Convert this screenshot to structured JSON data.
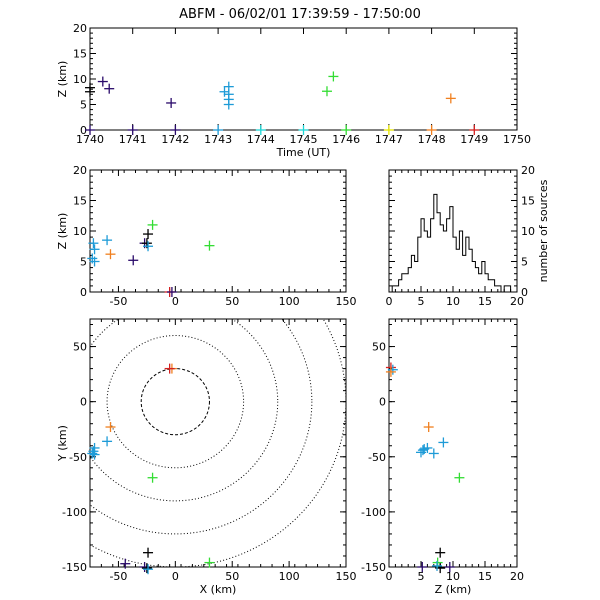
{
  "title": "ABFM - 06/02/01 17:39:59 - 17:50:00",
  "colors": {
    "black": "#000000",
    "indigo": "#2a0a6a",
    "blue": "#1e9bd7",
    "cyan": "#1fd6d6",
    "green": "#33dd33",
    "yellow": "#e6e600",
    "orange": "#f08020",
    "red": "#d42020"
  },
  "chart_data": [
    {
      "panel": "time-height",
      "type": "scatter",
      "xlabel": "Time (UT)",
      "ylabel": "Z (km)",
      "xlim": [
        1740,
        1750
      ],
      "ylim": [
        0,
        20
      ],
      "xticks": [
        1740,
        1741,
        1742,
        1743,
        1744,
        1745,
        1746,
        1747,
        1748,
        1749,
        1750
      ],
      "yticks": [
        0,
        5,
        10,
        15,
        20
      ],
      "points": [
        {
          "x": 1740.0,
          "y": 7.5,
          "c": "black"
        },
        {
          "x": 1740.0,
          "y": 8.3,
          "c": "black"
        },
        {
          "x": 1740.3,
          "y": 9.5,
          "c": "indigo"
        },
        {
          "x": 1740.45,
          "y": 8.1,
          "c": "indigo"
        },
        {
          "x": 1740.0,
          "y": 0.0,
          "c": "indigo"
        },
        {
          "x": 1741.0,
          "y": 0.0,
          "c": "indigo"
        },
        {
          "x": 1742.0,
          "y": 0.0,
          "c": "indigo"
        },
        {
          "x": 1741.9,
          "y": 5.3,
          "c": "indigo"
        },
        {
          "x": 1743.0,
          "y": 0.0,
          "c": "blue"
        },
        {
          "x": 1743.15,
          "y": 7.5,
          "c": "blue"
        },
        {
          "x": 1743.25,
          "y": 8.5,
          "c": "blue"
        },
        {
          "x": 1743.25,
          "y": 7.0,
          "c": "blue"
        },
        {
          "x": 1743.25,
          "y": 6.0,
          "c": "blue"
        },
        {
          "x": 1743.25,
          "y": 5.0,
          "c": "blue"
        },
        {
          "x": 1744.0,
          "y": 0.0,
          "c": "cyan"
        },
        {
          "x": 1745.0,
          "y": 0.0,
          "c": "cyan"
        },
        {
          "x": 1745.55,
          "y": 7.6,
          "c": "green"
        },
        {
          "x": 1745.7,
          "y": 10.5,
          "c": "green"
        },
        {
          "x": 1746.0,
          "y": 0.0,
          "c": "green"
        },
        {
          "x": 1747.0,
          "y": 0.0,
          "c": "yellow"
        },
        {
          "x": 1748.0,
          "y": 0.0,
          "c": "orange"
        },
        {
          "x": 1748.45,
          "y": 6.2,
          "c": "orange"
        },
        {
          "x": 1749.0,
          "y": 0.0,
          "c": "red"
        }
      ]
    },
    {
      "panel": "x-height",
      "type": "scatter",
      "xlabel": "",
      "ylabel": "Z (km)",
      "xlim": [
        -75,
        150
      ],
      "ylim": [
        0,
        20
      ],
      "xticks": [
        -50,
        0,
        50,
        100,
        150
      ],
      "yticks": [
        0,
        5,
        10,
        15,
        20
      ],
      "points": [
        {
          "x": -72,
          "y": 8.0,
          "c": "blue"
        },
        {
          "x": -71,
          "y": 7.0,
          "c": "blue"
        },
        {
          "x": -73,
          "y": 5.5,
          "c": "blue"
        },
        {
          "x": -71,
          "y": 5.0,
          "c": "blue"
        },
        {
          "x": -60,
          "y": 8.5,
          "c": "blue"
        },
        {
          "x": -57,
          "y": 6.2,
          "c": "orange"
        },
        {
          "x": -37,
          "y": 5.2,
          "c": "indigo"
        },
        {
          "x": -27,
          "y": 8.0,
          "c": "indigo"
        },
        {
          "x": -24,
          "y": 9.5,
          "c": "black"
        },
        {
          "x": -25,
          "y": 8.0,
          "c": "black"
        },
        {
          "x": -24,
          "y": 7.5,
          "c": "blue"
        },
        {
          "x": -20,
          "y": 11.0,
          "c": "green"
        },
        {
          "x": 30,
          "y": 7.6,
          "c": "green"
        },
        {
          "x": -5,
          "y": 0.0,
          "c": "red"
        },
        {
          "x": -3,
          "y": 0.0,
          "c": "indigo"
        }
      ]
    },
    {
      "panel": "height-histogram",
      "type": "histogram",
      "xlabel": "",
      "ylabel": "number of sources",
      "xlim": [
        0,
        20
      ],
      "ylim": [
        0,
        20
      ],
      "xticks": [
        0,
        5,
        10,
        15,
        20
      ],
      "yticks": [
        0,
        5,
        10,
        15,
        20
      ],
      "bin_width": 0.5,
      "bin_start": 0,
      "counts": [
        0,
        1,
        1,
        2,
        3,
        3,
        4,
        6,
        5,
        9,
        12,
        10,
        9,
        12,
        16,
        13,
        11,
        10,
        12,
        14,
        9,
        7,
        10,
        6,
        9,
        7,
        5,
        4,
        3,
        5,
        3,
        2,
        2,
        1,
        1,
        0,
        1,
        1,
        0,
        0
      ]
    },
    {
      "panel": "plan-view",
      "type": "scatter",
      "xlabel": "X (km)",
      "ylabel": "Y (km)",
      "xlim": [
        -75,
        150
      ],
      "ylim": [
        -150,
        75
      ],
      "xticks": [
        -50,
        0,
        50,
        100,
        150
      ],
      "yticks": [
        -150,
        -100,
        -50,
        0,
        50
      ],
      "range_rings_km": [
        30,
        60,
        90,
        120,
        150
      ],
      "points": [
        {
          "x": -3,
          "y": 30,
          "c": "orange"
        },
        {
          "x": -5,
          "y": 30,
          "c": "red"
        },
        {
          "x": -57,
          "y": -23,
          "c": "orange"
        },
        {
          "x": -60,
          "y": -36,
          "c": "blue"
        },
        {
          "x": -71,
          "y": -42,
          "c": "blue"
        },
        {
          "x": -72,
          "y": -45,
          "c": "blue"
        },
        {
          "x": -73,
          "y": -47,
          "c": "blue"
        },
        {
          "x": -71,
          "y": -48,
          "c": "blue"
        },
        {
          "x": -20,
          "y": -69,
          "c": "green"
        },
        {
          "x": -24,
          "y": -137,
          "c": "black"
        },
        {
          "x": -44,
          "y": -147,
          "c": "indigo"
        },
        {
          "x": -27,
          "y": -150,
          "c": "indigo"
        },
        {
          "x": -25,
          "y": -151,
          "c": "black"
        },
        {
          "x": -24,
          "y": -152,
          "c": "blue"
        },
        {
          "x": 30,
          "y": -146,
          "c": "green"
        }
      ]
    },
    {
      "panel": "height-y",
      "type": "scatter",
      "xlabel": "Z (km)",
      "ylabel": "",
      "xlim": [
        0,
        20
      ],
      "ylim": [
        -150,
        75
      ],
      "xticks": [
        0,
        5,
        10,
        15,
        20
      ],
      "yticks": [
        -150,
        -100,
        -50,
        0,
        50
      ],
      "points": [
        {
          "x": 0.3,
          "y": 31,
          "c": "red"
        },
        {
          "x": 0.6,
          "y": 29,
          "c": "blue"
        },
        {
          "x": 0.3,
          "y": 27,
          "c": "orange"
        },
        {
          "x": 6.2,
          "y": -23,
          "c": "orange"
        },
        {
          "x": 8.5,
          "y": -37,
          "c": "blue"
        },
        {
          "x": 5.5,
          "y": -43,
          "c": "blue"
        },
        {
          "x": 6.0,
          "y": -42,
          "c": "blue"
        },
        {
          "x": 5.0,
          "y": -46,
          "c": "blue"
        },
        {
          "x": 7.0,
          "y": -47,
          "c": "blue"
        },
        {
          "x": 5.3,
          "y": -44,
          "c": "blue"
        },
        {
          "x": 11.0,
          "y": -69,
          "c": "green"
        },
        {
          "x": 8.0,
          "y": -137,
          "c": "black"
        },
        {
          "x": 7.6,
          "y": -146,
          "c": "green"
        },
        {
          "x": 9.5,
          "y": -150,
          "c": "indigo"
        },
        {
          "x": 8.0,
          "y": -151,
          "c": "black"
        },
        {
          "x": 7.5,
          "y": -149,
          "c": "blue"
        },
        {
          "x": 5.2,
          "y": -150,
          "c": "indigo"
        }
      ]
    }
  ]
}
